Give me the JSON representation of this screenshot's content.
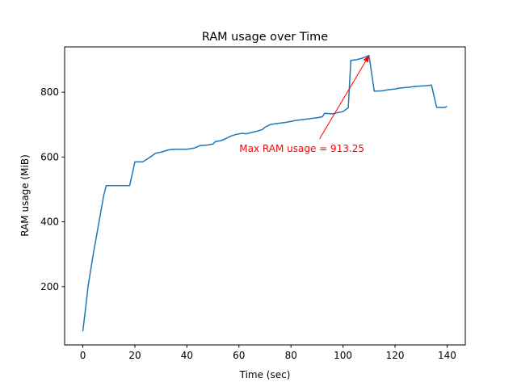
{
  "chart_data": {
    "type": "line",
    "title": "RAM usage over Time",
    "xlabel": "Time (sec)",
    "ylabel": "RAM usage (MiB)",
    "xlim": [
      -7,
      147
    ],
    "ylim": [
      20,
      940
    ],
    "xticks": [
      0,
      20,
      40,
      60,
      80,
      100,
      120,
      140
    ],
    "yticks": [
      200,
      400,
      600,
      800
    ],
    "grid": false,
    "line_color": "#1f77b4",
    "annotation_color": "#ff0000",
    "series": [
      {
        "name": "RAM usage",
        "x": [
          0,
          1,
          2,
          4,
          6,
          8,
          9,
          10,
          12,
          14,
          16,
          18,
          20,
          23,
          25,
          28,
          30,
          33,
          35,
          38,
          40,
          43,
          45,
          48,
          50,
          51,
          53,
          55,
          57,
          59,
          61,
          63,
          65,
          67,
          69,
          70,
          72,
          74,
          78,
          82,
          86,
          90,
          92,
          93,
          96,
          98,
          100,
          102,
          103,
          105,
          107,
          109,
          110,
          112,
          115,
          117,
          120,
          122,
          125,
          128,
          132,
          134,
          136,
          139,
          140
        ],
        "y": [
          62,
          130,
          200,
          300,
          390,
          480,
          512,
          512,
          512,
          512,
          512,
          512,
          585,
          585,
          595,
          612,
          615,
          622,
          624,
          624,
          624,
          628,
          635,
          637,
          640,
          648,
          650,
          657,
          665,
          670,
          673,
          672,
          676,
          680,
          685,
          692,
          700,
          703,
          707,
          713,
          717,
          721,
          724,
          735,
          733,
          737,
          740,
          752,
          898,
          900,
          904,
          910,
          913.25,
          803,
          804,
          807,
          810,
          813,
          815,
          818,
          820,
          822,
          753,
          753,
          756
        ]
      }
    ],
    "annotation": {
      "text": "Max RAM usage = 913.25",
      "xy": [
        110,
        913.25
      ],
      "xytext": [
        91,
        656
      ]
    }
  }
}
